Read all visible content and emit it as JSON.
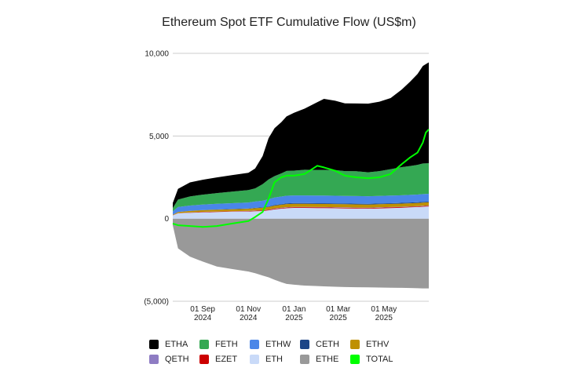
{
  "chart_data": {
    "type": "area",
    "stacking": "stacked with diverging negatives",
    "title": "Ethereum Spot ETF Cumulative Flow (US$m)",
    "xlabel": "",
    "ylabel": "",
    "x_range": [
      "2024-07-23",
      "2025-06-30"
    ],
    "ylim": [
      -5000,
      10000
    ],
    "y_ticks": [
      {
        "value": 10000,
        "label": "10,000"
      },
      {
        "value": 5000,
        "label": "5,000"
      },
      {
        "value": 0,
        "label": "0"
      },
      {
        "value": -5000,
        "label": "(5,000)"
      }
    ],
    "x_ticks": [
      {
        "date": "2024-09-01",
        "label": [
          "01 Sep",
          "2024"
        ]
      },
      {
        "date": "2024-11-01",
        "label": [
          "01 Nov",
          "2024"
        ]
      },
      {
        "date": "2025-01-01",
        "label": [
          "01 Jan",
          "2025"
        ]
      },
      {
        "date": "2025-03-01",
        "label": [
          "01 Mar",
          "2025"
        ]
      },
      {
        "date": "2025-05-01",
        "label": [
          "01 May",
          "2025"
        ]
      }
    ],
    "grid": "horizontal",
    "legend_position": "bottom",
    "dates": [
      "2024-07-23",
      "2024-07-30",
      "2024-08-15",
      "2024-09-01",
      "2024-09-20",
      "2024-10-10",
      "2024-11-01",
      "2024-11-10",
      "2024-11-20",
      "2024-11-28",
      "2024-12-06",
      "2024-12-15",
      "2024-12-22",
      "2025-01-01",
      "2025-01-15",
      "2025-02-01",
      "2025-02-10",
      "2025-02-25",
      "2025-03-10",
      "2025-03-25",
      "2025-04-10",
      "2025-04-25",
      "2025-05-10",
      "2025-05-25",
      "2025-06-05",
      "2025-06-15",
      "2025-06-22",
      "2025-06-26",
      "2025-06-30"
    ],
    "series": [
      {
        "name": "ETHE",
        "color": "#999999",
        "values": [
          -400,
          -1800,
          -2300,
          -2600,
          -2900,
          -3050,
          -3200,
          -3300,
          -3450,
          -3550,
          -3700,
          -3850,
          -3950,
          -4000,
          -4050,
          -4080,
          -4100,
          -4120,
          -4140,
          -4150,
          -4160,
          -4170,
          -4180,
          -4190,
          -4200,
          -4210,
          -4220,
          -4220,
          -4220
        ]
      },
      {
        "name": "ETH",
        "color": "#c9daf8",
        "values": [
          200,
          320,
          350,
          380,
          400,
          420,
          430,
          450,
          460,
          500,
          560,
          600,
          630,
          650,
          650,
          640,
          640,
          630,
          620,
          610,
          600,
          620,
          640,
          660,
          680,
          700,
          720,
          730,
          740
        ]
      },
      {
        "name": "EZET",
        "color": "#cc0000",
        "values": [
          5,
          10,
          15,
          20,
          20,
          20,
          25,
          30,
          30,
          35,
          40,
          40,
          40,
          40,
          40,
          40,
          40,
          40,
          40,
          40,
          40,
          40,
          40,
          40,
          40,
          40,
          40,
          40,
          40
        ]
      },
      {
        "name": "QETH",
        "color": "#8e7cc3",
        "values": [
          3,
          5,
          8,
          10,
          10,
          10,
          12,
          12,
          15,
          15,
          18,
          18,
          20,
          20,
          20,
          20,
          20,
          20,
          20,
          20,
          20,
          20,
          20,
          20,
          20,
          20,
          20,
          20,
          20
        ]
      },
      {
        "name": "ETHV",
        "color": "#bf9000",
        "values": [
          30,
          60,
          90,
          100,
          110,
          120,
          130,
          140,
          150,
          160,
          170,
          180,
          190,
          190,
          190,
          190,
          190,
          190,
          190,
          190,
          190,
          190,
          190,
          190,
          190,
          190,
          190,
          190,
          190
        ]
      },
      {
        "name": "CETH",
        "color": "#1c4587",
        "values": [
          3,
          5,
          10,
          12,
          15,
          15,
          18,
          20,
          25,
          30,
          35,
          40,
          45,
          45,
          45,
          45,
          45,
          45,
          45,
          45,
          45,
          45,
          45,
          45,
          45,
          45,
          45,
          45,
          45
        ]
      },
      {
        "name": "ETHW",
        "color": "#4a86e8",
        "values": [
          200,
          300,
          320,
          330,
          340,
          350,
          360,
          380,
          400,
          430,
          450,
          460,
          460,
          460,
          460,
          460,
          460,
          460,
          460,
          460,
          460,
          460,
          460,
          460,
          460,
          460,
          470,
          470,
          470
        ]
      },
      {
        "name": "FETH",
        "color": "#34a853",
        "values": [
          200,
          450,
          550,
          600,
          650,
          700,
          750,
          800,
          1000,
          1200,
          1300,
          1400,
          1500,
          1500,
          1550,
          1550,
          1550,
          1550,
          1500,
          1500,
          1450,
          1500,
          1600,
          1700,
          1750,
          1800,
          1850,
          1850,
          1850
        ]
      },
      {
        "name": "ETHA",
        "color": "#000000",
        "values": [
          300,
          650,
          850,
          900,
          950,
          1000,
          1050,
          1200,
          1700,
          2500,
          2900,
          3100,
          3300,
          3500,
          3700,
          4100,
          4300,
          4200,
          4100,
          4100,
          4150,
          4200,
          4300,
          4700,
          5100,
          5500,
          5900,
          6000,
          6100
        ]
      },
      {
        "name": "TOTAL",
        "color": "#00ff00",
        "line": true,
        "values": [
          -300,
          -400,
          -450,
          -500,
          -450,
          -300,
          -150,
          100,
          400,
          1200,
          2200,
          2500,
          2600,
          2600,
          2700,
          3200,
          3100,
          2900,
          2600,
          2500,
          2450,
          2500,
          2700,
          3300,
          3700,
          4000,
          4600,
          5200,
          5400
        ]
      }
    ],
    "legend": [
      [
        "ETHA",
        "FETH",
        "ETHW",
        "CETH",
        "ETHV"
      ],
      [
        "QETH",
        "EZET",
        "ETH",
        "ETHE",
        "TOTAL"
      ]
    ]
  }
}
